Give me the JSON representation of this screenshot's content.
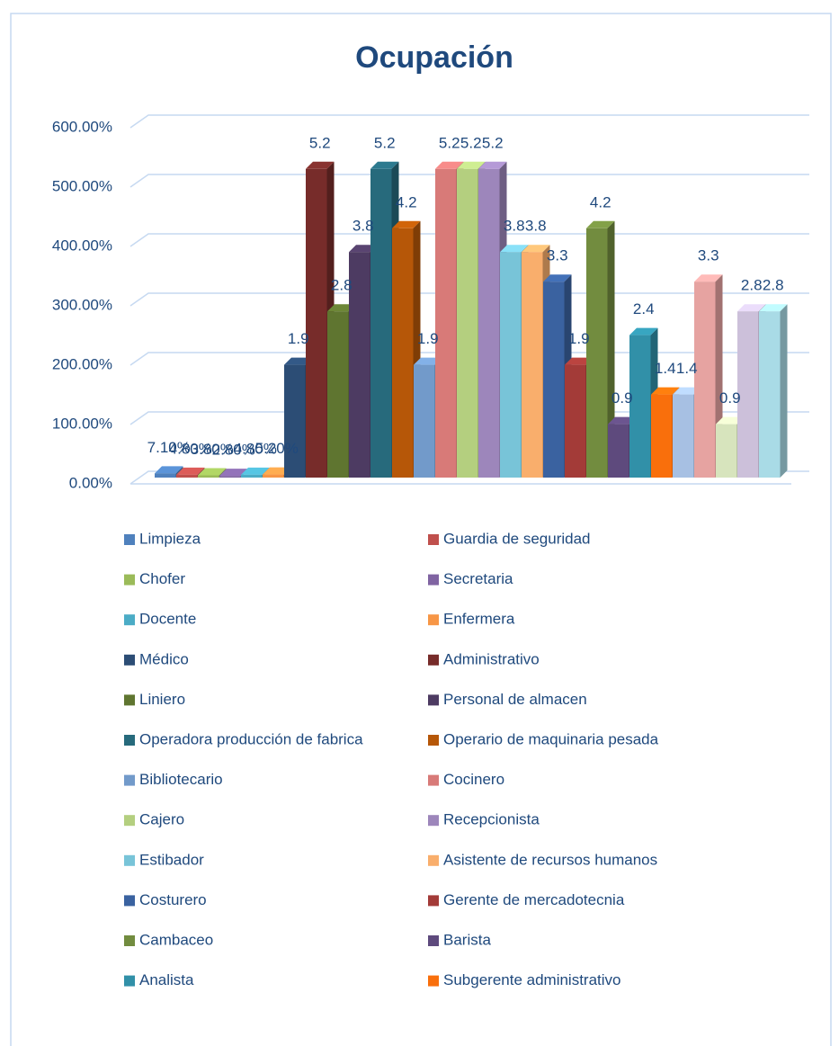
{
  "chart_data": {
    "type": "bar3d",
    "title": "Ocupación",
    "ylim": [
      0,
      600
    ],
    "yticks": [
      {
        "value": 0,
        "label": "0.00%"
      },
      {
        "value": 100,
        "label": "100.00%"
      },
      {
        "value": 200,
        "label": "200.00%"
      },
      {
        "value": 300,
        "label": "300.00%"
      },
      {
        "value": 400,
        "label": "400.00%"
      },
      {
        "value": 500,
        "label": "500.00%"
      },
      {
        "value": 600,
        "label": "600.00%"
      }
    ],
    "grid": true,
    "series": [
      {
        "name": "Limpieza",
        "color": "#4f81bd",
        "values": [
          7.1
        ],
        "value_labels": [
          "7.10%"
        ]
      },
      {
        "name": "Guardia de seguridad",
        "color": "#c0504d",
        "values": [
          4.8
        ],
        "value_labels": [
          "4.80%"
        ]
      },
      {
        "name": "Chofer",
        "color": "#9bbb59",
        "values": [
          3.8
        ],
        "value_labels": [
          "3.80%"
        ]
      },
      {
        "name": "Secretaria",
        "color": "#8064a2",
        "values": [
          2.8
        ],
        "value_labels": [
          "2.80%"
        ]
      },
      {
        "name": "Docente",
        "color": "#4bacc6",
        "values": [
          4.8
        ],
        "value_labels": [
          "4.80%"
        ]
      },
      {
        "name": "Enfermera",
        "color": "#f79646",
        "values": [
          5.2
        ],
        "value_labels": [
          "5.20%"
        ]
      },
      {
        "name": "Médico",
        "color": "#2c4d75",
        "values": [
          190
        ],
        "value_labels": [
          "1.9"
        ]
      },
      {
        "name": "Administrativo",
        "color": "#772c2a",
        "values": [
          520
        ],
        "value_labels": [
          "5.2"
        ]
      },
      {
        "name": "Liniero",
        "color": "#5f7530",
        "values": [
          280
        ],
        "value_labels": [
          "2.8"
        ]
      },
      {
        "name": "Personal de almacen",
        "color": "#4d3b62",
        "values": [
          380
        ],
        "value_labels": [
          "3.8"
        ]
      },
      {
        "name": "Operadora producción de fabrica",
        "color": "#276a7c",
        "values": [
          520
        ],
        "value_labels": [
          "5.2"
        ]
      },
      {
        "name": "Operario de maquinaria pesada",
        "color": "#b65708",
        "values": [
          420
        ],
        "value_labels": [
          "4.2"
        ]
      },
      {
        "name": "Bibliotecario",
        "color": "#729aca",
        "values": [
          190
        ],
        "value_labels": [
          "1.9"
        ]
      },
      {
        "name": "Cocinero",
        "color": "#d87a78",
        "values": [
          520
        ],
        "value_labels": [
          "5.2"
        ]
      },
      {
        "name": "Cajero",
        "color": "#b4cf7f",
        "values": [
          520
        ],
        "value_labels": [
          "5.2"
        ]
      },
      {
        "name": "Recepcionista",
        "color": "#9d86bb",
        "values": [
          520
        ],
        "value_labels": [
          "5.2"
        ]
      },
      {
        "name": "Estibador",
        "color": "#78c4d8",
        "values": [
          380
        ],
        "value_labels": [
          "3.8"
        ]
      },
      {
        "name": "Asistente de recursos humanos",
        "color": "#f9ae6c",
        "values": [
          380
        ],
        "value_labels": [
          "3.8"
        ]
      },
      {
        "name": "Costurero",
        "color": "#3a62a0",
        "values": [
          330
        ],
        "value_labels": [
          "3.3"
        ]
      },
      {
        "name": "Gerente de mercadotecnia",
        "color": "#a33b38",
        "values": [
          190
        ],
        "value_labels": [
          "1.9"
        ]
      },
      {
        "name": "Cambaceo",
        "color": "#728c3f",
        "values": [
          420
        ],
        "value_labels": [
          "4.2"
        ]
      },
      {
        "name": "Barista",
        "color": "#5e4a7d",
        "values": [
          90
        ],
        "value_labels": [
          "0.9"
        ]
      },
      {
        "name": "Analista",
        "color": "#3190a8",
        "values": [
          240
        ],
        "value_labels": [
          "2.4"
        ]
      },
      {
        "name": "Subgerente administrativo",
        "color": "#f96f0c",
        "values": [
          140
        ],
        "value_labels": [
          "1.4"
        ]
      },
      {
        "name": null,
        "color": "#a7c0e3",
        "values": [
          140
        ],
        "value_labels": [
          "1.4"
        ]
      },
      {
        "name": null,
        "color": "#e6a3a1",
        "values": [
          330
        ],
        "value_labels": [
          "3.3"
        ]
      },
      {
        "name": null,
        "color": "#d7e4bd",
        "values": [
          90
        ],
        "value_labels": [
          "0.9"
        ]
      },
      {
        "name": null,
        "color": "#ccc0da",
        "values": [
          280
        ],
        "value_labels": [
          "2.8"
        ]
      },
      {
        "name": null,
        "color": "#a9dbe6",
        "values": [
          280
        ],
        "value_labels": [
          "2.8"
        ]
      }
    ]
  }
}
